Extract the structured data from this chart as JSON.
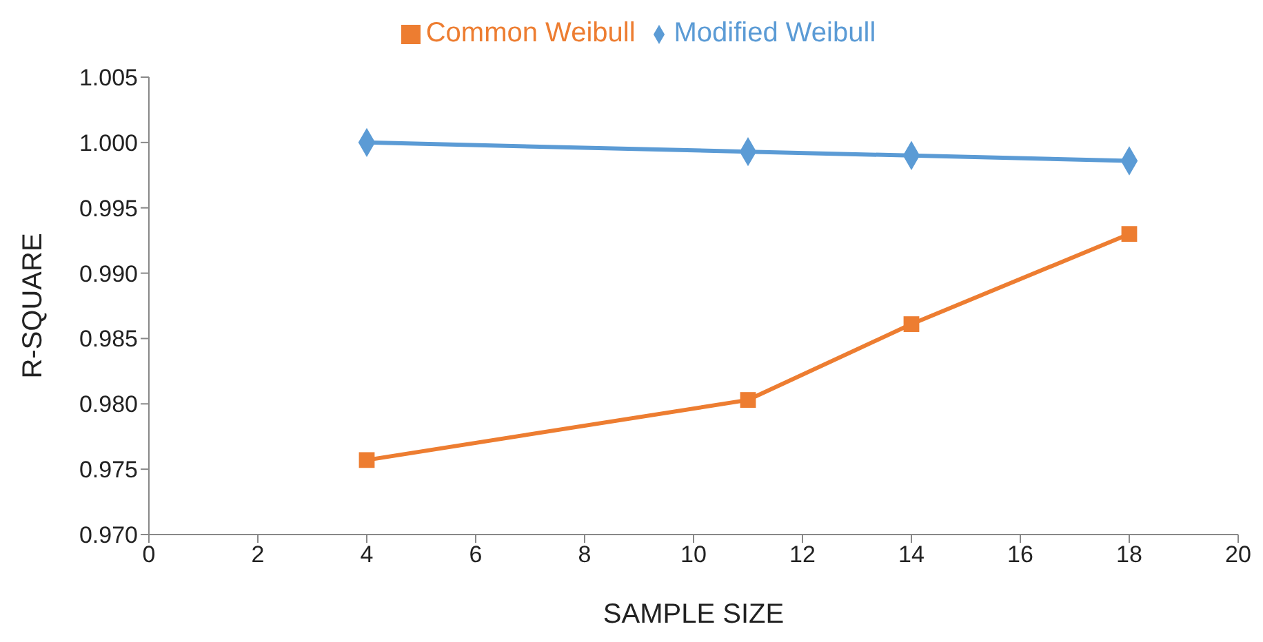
{
  "chart_data": {
    "type": "line",
    "xlabel": "SAMPLE SIZE",
    "ylabel": "R-SQUARE",
    "x": [
      4,
      11,
      14,
      18
    ],
    "series": [
      {
        "name": "Modified Weibull",
        "color": "#5b9bd5",
        "marker": "diamond",
        "values": [
          1.0,
          0.9993,
          0.999,
          0.9986
        ]
      },
      {
        "name": "Common Weibull",
        "color": "#ed7d31",
        "marker": "square",
        "values": [
          0.9757,
          0.9803,
          0.9861,
          0.993
        ]
      }
    ],
    "xlim": [
      0,
      20
    ],
    "xticks": [
      0,
      2,
      4,
      6,
      8,
      10,
      12,
      14,
      16,
      18,
      20
    ],
    "ylim": [
      0.97,
      1.005
    ],
    "yticks": [
      {
        "value": 0.97,
        "label": "0.970"
      },
      {
        "value": 0.975,
        "label": "0.975"
      },
      {
        "value": 0.98,
        "label": "0.980"
      },
      {
        "value": 0.985,
        "label": "0.985"
      },
      {
        "value": 0.99,
        "label": "0.990"
      },
      {
        "value": 0.995,
        "label": "0.995"
      },
      {
        "value": 1.0,
        "label": "1.000"
      },
      {
        "value": 1.005,
        "label": "1.005"
      }
    ],
    "grid": false,
    "legend": "top",
    "line_style": "solid"
  }
}
